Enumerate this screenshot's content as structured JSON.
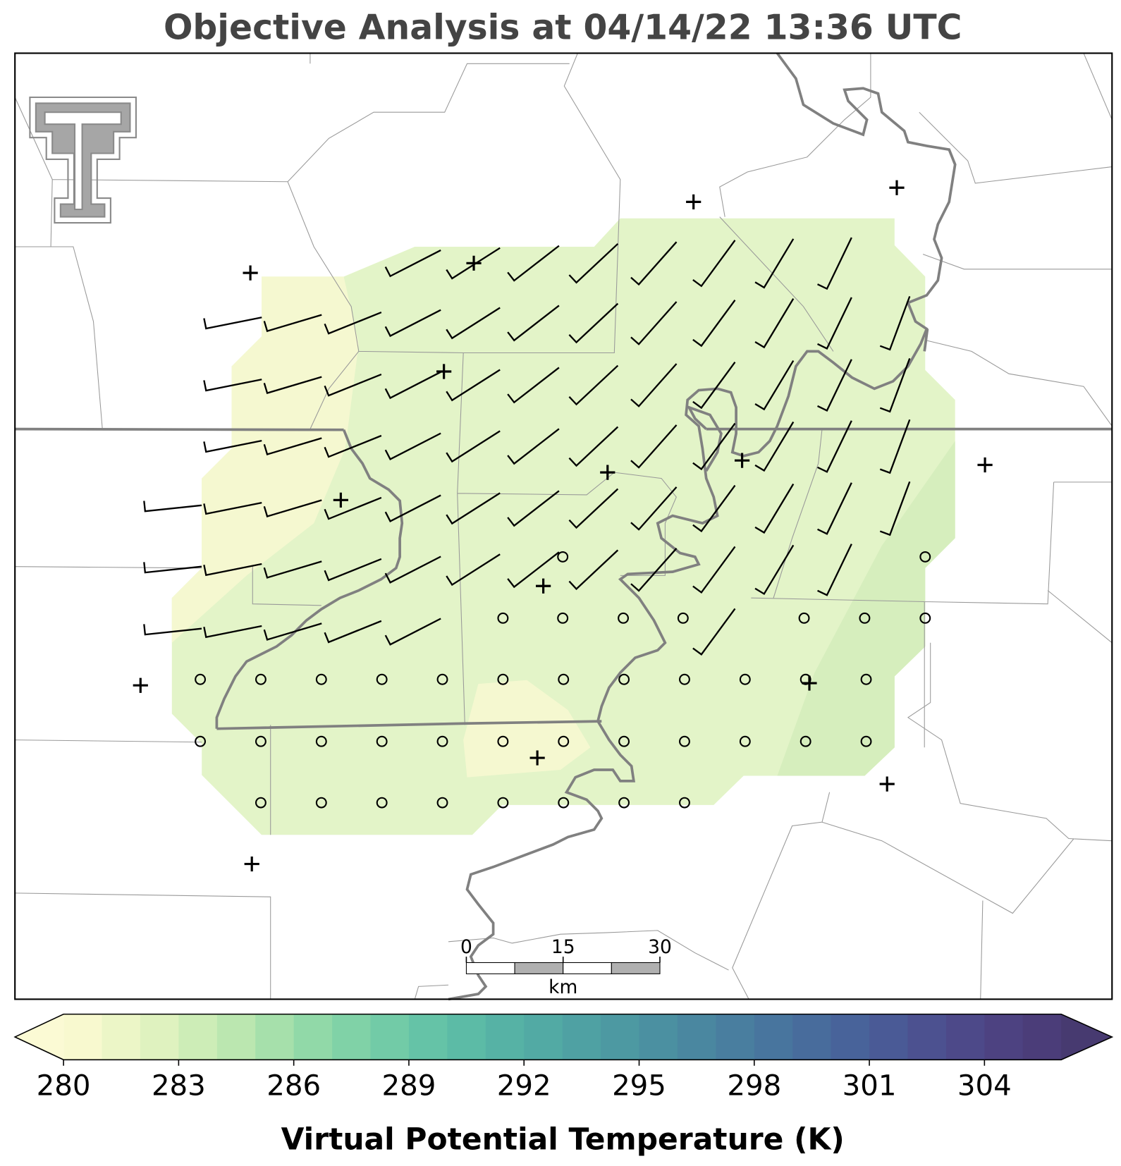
{
  "title": "Objective Analysis at 04/14/22 13:36 UTC",
  "scale_bar": {
    "ticks": [
      0,
      15,
      30
    ],
    "range": [
      0,
      30
    ],
    "unit": "km"
  },
  "colorbar": {
    "label": "Virtual Potential Temperature (K)",
    "range": [
      280,
      306
    ],
    "ticks": [
      280,
      283,
      286,
      289,
      292,
      295,
      298,
      301,
      304
    ],
    "under_color": "#fbfad4",
    "over_color": "#473a70",
    "colors": [
      "#f8f9cf",
      "#ecf6c7",
      "#dff2bf",
      "#cdedb7",
      "#bbe7b0",
      "#a6e0ab",
      "#91d9a8",
      "#80d2a7",
      "#72cba7",
      "#65c3a7",
      "#5cbba6",
      "#56b2a5",
      "#52aaa4",
      "#4fa1a3",
      "#4d99a2",
      "#4b90a1",
      "#4a87a0",
      "#497e9f",
      "#48759e",
      "#486c9c",
      "#48639a",
      "#4a5a96",
      "#4c5190",
      "#4d4989",
      "#4d4281",
      "#4b3d79"
    ]
  }
}
